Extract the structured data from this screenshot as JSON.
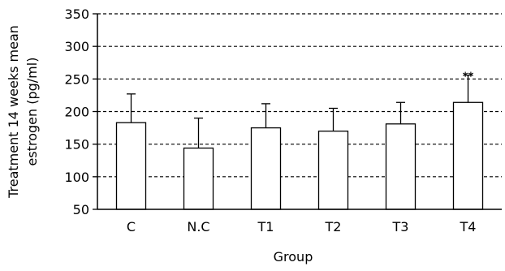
{
  "chart_data": {
    "type": "bar",
    "title": "",
    "xlabel": "Group",
    "ylabel_lines": [
      "Treatment 14 weeks mean",
      "estrogen (pg/ml)"
    ],
    "categories": [
      "C",
      "N.C",
      "T1",
      "T2",
      "T3",
      "T4"
    ],
    "series": [
      {
        "values": [
          183,
          144,
          175,
          170,
          181,
          214
        ],
        "errors": [
          44,
          46,
          37,
          35,
          33,
          42
        ]
      }
    ],
    "annotations": [
      {
        "category": "T4",
        "text": "**"
      }
    ],
    "ylim": [
      50,
      350
    ],
    "yticks": [
      50,
      100,
      150,
      200,
      250,
      300,
      350
    ],
    "grid": "horizontal dashed",
    "legend": "none",
    "bar_fill": "#ffffff",
    "line_color": "#000000"
  }
}
